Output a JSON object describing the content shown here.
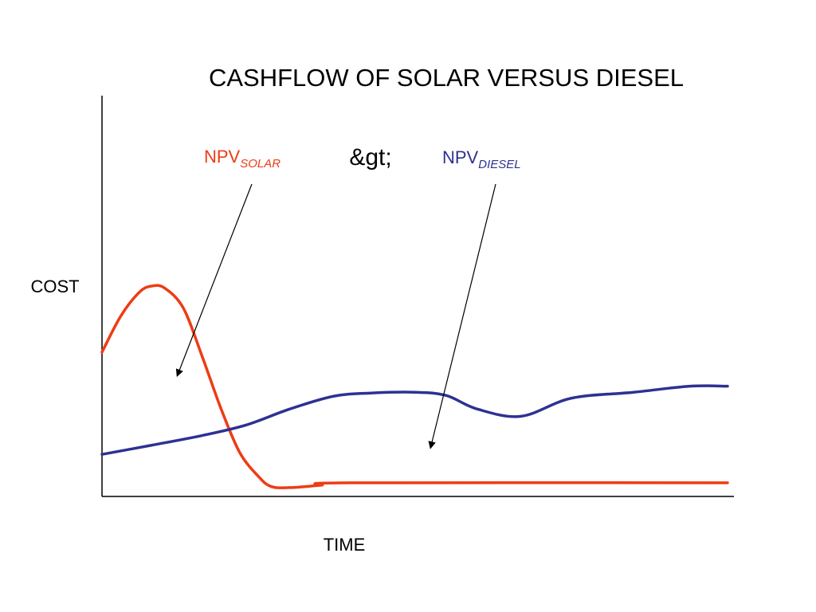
{
  "chart_data": {
    "type": "line",
    "title": "CASHFLOW OF SOLAR VERSUS DIESEL",
    "xlabel": "TIME",
    "ylabel": "COST",
    "xlim": [
      0,
      100
    ],
    "ylim": [
      0,
      100
    ],
    "grid": false,
    "x_ticks_shown": false,
    "y_ticks_shown": false,
    "series": [
      {
        "key": "solar",
        "color": "#ee3c14",
        "points": [
          [
            0,
            36
          ],
          [
            3,
            45
          ],
          [
            6,
            51
          ],
          [
            8,
            52.5
          ],
          [
            10,
            52
          ],
          [
            13,
            47
          ],
          [
            16,
            35
          ],
          [
            19,
            22
          ],
          [
            22,
            11
          ],
          [
            25,
            5
          ],
          [
            27,
            2.5
          ],
          [
            30,
            2.2
          ],
          [
            35,
            2.8
          ],
          [
            40,
            3.4
          ],
          [
            100,
            3.4
          ]
        ]
      },
      {
        "key": "diesel",
        "color": "#2e3192",
        "points": [
          [
            0,
            10.5
          ],
          [
            8,
            12.8
          ],
          [
            16,
            15.2
          ],
          [
            23,
            17.8
          ],
          [
            30,
            21.8
          ],
          [
            37,
            25
          ],
          [
            43,
            25.8
          ],
          [
            50,
            26
          ],
          [
            55,
            25.2
          ],
          [
            60,
            21.8
          ],
          [
            67,
            20
          ],
          [
            75,
            24.5
          ],
          [
            85,
            26
          ],
          [
            94,
            27.5
          ],
          [
            100,
            27.5
          ]
        ]
      }
    ],
    "annotations": {
      "solar": {
        "text": "NPV",
        "subscript": "SOLAR",
        "color": "#ee3c14",
        "arrow_target": [
          12,
          30
        ]
      },
      "comparison": "&gt;",
      "diesel": {
        "text": "NPV",
        "subscript": "DIESEL",
        "color": "#2e3192",
        "arrow_target": [
          52.5,
          12
        ]
      }
    }
  }
}
